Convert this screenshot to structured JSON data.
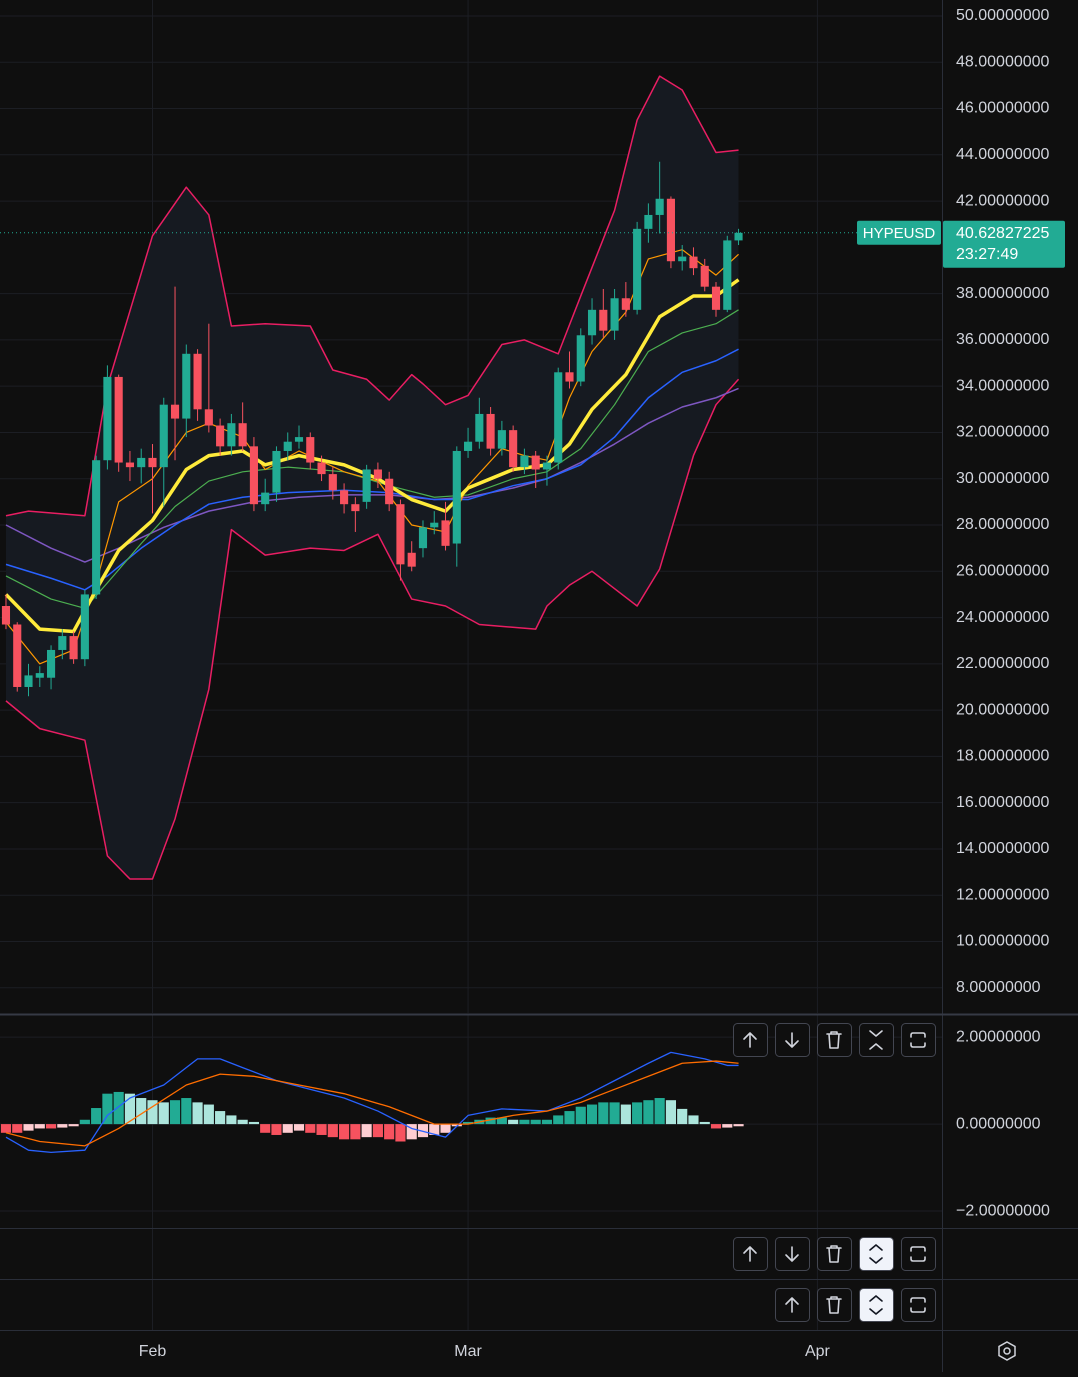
{
  "chart_data": [
    {
      "type": "candlestick",
      "symbol": "HYPEUSD",
      "last_price": 40.62827225,
      "countdown": "23:27:49",
      "up_color": "#22ab94",
      "down_color": "#f7525f",
      "open": [
        24.5,
        23.7,
        21.0,
        21.4,
        21.4,
        22.6,
        23.2,
        22.2,
        25.0,
        30.8,
        34.4,
        30.7,
        30.5,
        30.9,
        30.5,
        33.2,
        32.6,
        35.4,
        33.0,
        32.3,
        31.4,
        32.4,
        31.4,
        28.9,
        29.4,
        31.2,
        31.6,
        31.8,
        30.7,
        30.2,
        29.5,
        28.9,
        29.0,
        30.4,
        30.0,
        28.9,
        26.8,
        27.0,
        27.9,
        28.2,
        27.2,
        31.2,
        31.6,
        32.8,
        31.3,
        32.1,
        30.5,
        31.0,
        30.4,
        30.7,
        34.6,
        34.2,
        36.2,
        37.3,
        36.4,
        37.8,
        37.3,
        40.8,
        41.4,
        42.1,
        39.4,
        39.6,
        39.2,
        38.3,
        37.3,
        40.3
      ],
      "high": [
        25.0,
        23.8,
        22.0,
        21.9,
        22.8,
        23.5,
        23.4,
        25.2,
        31.0,
        34.9,
        34.5,
        31.2,
        31.3,
        31.5,
        33.5,
        38.3,
        35.8,
        35.6,
        36.7,
        32.6,
        32.8,
        33.3,
        31.8,
        30.0,
        31.4,
        32.0,
        32.3,
        32.0,
        31.0,
        30.5,
        29.8,
        29.2,
        30.6,
        30.7,
        30.3,
        29.1,
        27.3,
        28.2,
        28.6,
        29.0,
        31.4,
        32.2,
        33.5,
        33.1,
        32.5,
        32.3,
        31.3,
        31.2,
        31.0,
        34.8,
        35.5,
        36.5,
        37.8,
        38.2,
        38.2,
        38.5,
        41.1,
        41.9,
        43.7,
        42.2,
        40.1,
        40.0,
        39.5,
        38.5,
        40.5,
        40.8
      ],
      "low": [
        23.5,
        20.8,
        20.6,
        21.0,
        20.9,
        22.2,
        22.0,
        21.9,
        24.8,
        30.4,
        30.3,
        29.9,
        29.8,
        28.5,
        28.8,
        30.8,
        31.8,
        32.5,
        32.0,
        31.0,
        31.0,
        31.2,
        28.6,
        28.6,
        29.0,
        30.8,
        31.3,
        30.4,
        29.9,
        29.1,
        28.5,
        27.7,
        28.7,
        29.6,
        28.6,
        25.6,
        26.0,
        26.6,
        27.6,
        26.9,
        26.2,
        30.9,
        31.3,
        31.0,
        31.0,
        30.3,
        30.2,
        29.6,
        29.7,
        30.4,
        33.9,
        34.0,
        35.8,
        36.1,
        36.0,
        37.0,
        37.1,
        40.2,
        40.6,
        39.1,
        39.0,
        38.8,
        38.1,
        37.0,
        37.2,
        40.1
      ],
      "close": [
        23.7,
        21.0,
        21.5,
        21.6,
        22.6,
        23.2,
        22.2,
        25.0,
        30.8,
        34.4,
        30.7,
        30.5,
        30.9,
        30.5,
        33.2,
        32.6,
        35.4,
        33.0,
        32.3,
        31.4,
        32.4,
        31.4,
        28.9,
        29.4,
        31.2,
        31.6,
        31.8,
        30.7,
        30.2,
        29.5,
        28.9,
        28.6,
        30.4,
        30.0,
        28.9,
        26.3,
        26.2,
        27.9,
        28.1,
        27.1,
        31.2,
        31.6,
        32.8,
        31.3,
        32.1,
        30.5,
        31.0,
        30.4,
        30.7,
        34.6,
        34.2,
        36.2,
        37.3,
        36.4,
        37.8,
        37.3,
        40.8,
        41.4,
        42.1,
        39.4,
        39.6,
        39.1,
        38.3,
        37.3,
        40.3,
        40.62827225
      ],
      "series": [
        {
          "color": "#e91e63",
          "width": 1.5,
          "x": [
            0,
            2,
            7,
            9,
            13,
            16,
            18,
            20,
            23,
            27,
            29,
            32,
            34,
            36,
            37,
            39,
            41,
            44,
            46,
            49,
            51,
            54,
            56,
            58,
            60,
            63,
            65
          ],
          "values": [
            28.4,
            28.6,
            28.4,
            34.0,
            40.5,
            42.6,
            41.4,
            36.6,
            36.7,
            36.6,
            34.7,
            34.3,
            33.4,
            34.5,
            34.1,
            33.2,
            33.6,
            35.8,
            36.0,
            35.4,
            37.9,
            41.6,
            45.5,
            47.4,
            46.8,
            44.1,
            44.2
          ]
        },
        {
          "color": "#e91e63",
          "width": 1.5,
          "x": [
            0,
            3,
            7,
            9,
            11,
            13,
            15,
            18,
            20,
            23,
            27,
            30,
            33,
            36,
            39,
            42,
            47,
            48,
            50,
            52,
            56,
            58,
            61,
            63,
            65
          ],
          "values": [
            20.4,
            19.2,
            18.7,
            13.7,
            12.7,
            12.7,
            15.3,
            20.9,
            27.8,
            26.7,
            27.0,
            26.9,
            27.6,
            24.8,
            24.5,
            23.7,
            23.5,
            24.5,
            25.4,
            26.0,
            24.5,
            26.1,
            31.0,
            33.2,
            34.3
          ]
        },
        {
          "color": "#7e57c2",
          "width": 1.5,
          "x": [
            0,
            4,
            7,
            10,
            14,
            18,
            22,
            26,
            30,
            34,
            38,
            41,
            45,
            48,
            51,
            54,
            57,
            60,
            63,
            65
          ],
          "values": [
            28.0,
            27.0,
            26.4,
            27.0,
            27.9,
            28.6,
            29.0,
            29.2,
            29.3,
            29.3,
            29.1,
            29.2,
            29.6,
            30.0,
            30.7,
            31.5,
            32.4,
            33.1,
            33.5,
            33.9
          ]
        },
        {
          "color": "#2962ff",
          "width": 1.5,
          "x": [
            0,
            4,
            7,
            9,
            12,
            15,
            18,
            21,
            25,
            30,
            34,
            38,
            41,
            45,
            48,
            51,
            54,
            57,
            60,
            63,
            65
          ],
          "values": [
            26.3,
            25.7,
            25.2,
            25.8,
            27.0,
            28.0,
            28.9,
            29.2,
            29.4,
            29.5,
            29.4,
            29.1,
            29.1,
            29.7,
            30.0,
            30.6,
            31.8,
            33.5,
            34.6,
            35.1,
            35.6
          ]
        },
        {
          "color": "#4caf50",
          "width": 1.2,
          "x": [
            0,
            4,
            7,
            9,
            12,
            15,
            18,
            21,
            25,
            30,
            34,
            38,
            41,
            45,
            48,
            51,
            54,
            57,
            60,
            63,
            65
          ],
          "values": [
            25.8,
            24.8,
            24.4,
            25.5,
            27.2,
            28.8,
            29.9,
            30.3,
            30.5,
            30.3,
            29.7,
            29.2,
            29.3,
            30.0,
            30.3,
            31.3,
            33.2,
            35.5,
            36.3,
            36.7,
            37.3
          ]
        },
        {
          "color": "#ff9800",
          "width": 1.2,
          "x": [
            0,
            3,
            6,
            8,
            10,
            13,
            16,
            18,
            21,
            23,
            26,
            30,
            33,
            36,
            39,
            41,
            44,
            46,
            48,
            50,
            52,
            55,
            57,
            60,
            63,
            65
          ],
          "values": [
            23.8,
            22.0,
            22.6,
            25.5,
            29.0,
            30.0,
            32.0,
            32.4,
            31.8,
            30.4,
            31.2,
            30.3,
            29.9,
            28.0,
            27.7,
            29.7,
            31.3,
            31.0,
            30.8,
            33.5,
            35.5,
            37.2,
            39.5,
            39.9,
            38.8,
            39.7
          ]
        },
        {
          "color": "#ffeb3b",
          "width": 3.5,
          "x": [
            0,
            3,
            6,
            8,
            10,
            13,
            16,
            18,
            21,
            23,
            26,
            30,
            33,
            36,
            39,
            41,
            45,
            48,
            50,
            52,
            55,
            58,
            61,
            63,
            65
          ],
          "values": [
            25.0,
            23.5,
            23.4,
            25.2,
            26.9,
            28.2,
            30.4,
            31.0,
            31.2,
            30.6,
            31.0,
            30.6,
            30.0,
            29.1,
            28.6,
            29.6,
            30.4,
            30.6,
            31.5,
            33.0,
            34.5,
            37.0,
            37.9,
            37.9,
            38.6
          ]
        }
      ],
      "xlim": [
        -0.53,
        83.14
      ],
      "xticks": [
        {
          "value": 13,
          "label": "Feb"
        },
        {
          "value": 41,
          "label": "Mar"
        },
        {
          "value": 72,
          "label": "Apr"
        }
      ],
      "ylim": [
        6.91,
        50.69
      ],
      "yticks": [
        {
          "value": 50,
          "label": "50.00000000"
        },
        {
          "value": 48,
          "label": "48.00000000"
        },
        {
          "value": 46,
          "label": "46.00000000"
        },
        {
          "value": 44,
          "label": "44.00000000"
        },
        {
          "value": 42,
          "label": "42.00000000"
        },
        {
          "value": 38,
          "label": "38.00000000"
        },
        {
          "value": 36,
          "label": "36.00000000"
        },
        {
          "value": 34,
          "label": "34.00000000"
        },
        {
          "value": 32,
          "label": "32.00000000"
        },
        {
          "value": 30,
          "label": "30.00000000"
        },
        {
          "value": 28,
          "label": "28.00000000"
        },
        {
          "value": 26,
          "label": "26.00000000"
        },
        {
          "value": 24,
          "label": "24.00000000"
        },
        {
          "value": 22,
          "label": "22.00000000"
        },
        {
          "value": 20,
          "label": "20.00000000"
        },
        {
          "value": 18,
          "label": "18.00000000"
        },
        {
          "value": 16,
          "label": "16.00000000"
        },
        {
          "value": 14,
          "label": "14.00000000"
        },
        {
          "value": 12,
          "label": "12.00000000"
        },
        {
          "value": 10,
          "label": "10.00000000"
        },
        {
          "value": 8,
          "label": "8.00000000"
        }
      ],
      "grid": true
    },
    {
      "type": "macd",
      "histogram": [
        -0.2,
        -0.2,
        -0.15,
        -0.1,
        -0.1,
        -0.08,
        -0.05,
        0.1,
        0.37,
        0.7,
        0.74,
        0.7,
        0.6,
        0.55,
        0.5,
        0.55,
        0.6,
        0.5,
        0.45,
        0.3,
        0.2,
        0.1,
        0.05,
        -0.2,
        -0.25,
        -0.2,
        -0.15,
        -0.2,
        -0.25,
        -0.3,
        -0.35,
        -0.35,
        -0.3,
        -0.3,
        -0.35,
        -0.4,
        -0.35,
        -0.3,
        -0.25,
        -0.2,
        -0.05,
        0.05,
        0.1,
        0.15,
        0.15,
        0.1,
        0.1,
        0.1,
        0.1,
        0.2,
        0.3,
        0.4,
        0.45,
        0.5,
        0.5,
        0.45,
        0.5,
        0.55,
        0.6,
        0.55,
        0.35,
        0.2,
        0.05,
        -0.1,
        -0.08,
        -0.05
      ],
      "histogram_colors": [
        "#22ab94",
        "#ace5dc",
        "#f7525f",
        "#ffcdd2"
      ],
      "series": [
        {
          "color": "#2962ff",
          "width": 1.3,
          "x": [
            0,
            2,
            4,
            7,
            9,
            11,
            14,
            17,
            19,
            21,
            24,
            27,
            30,
            33,
            36,
            39,
            41,
            44,
            48,
            51,
            54,
            57,
            59,
            62,
            64,
            65
          ],
          "values": [
            -0.3,
            -0.6,
            -0.65,
            -0.6,
            0.2,
            0.6,
            0.9,
            1.5,
            1.5,
            1.3,
            1.0,
            0.8,
            0.6,
            0.3,
            -0.1,
            -0.3,
            0.2,
            0.35,
            0.3,
            0.6,
            1.0,
            1.4,
            1.65,
            1.5,
            1.35,
            1.35
          ]
        },
        {
          "color": "#ff6d00",
          "width": 1.3,
          "x": [
            0,
            3,
            7,
            10,
            13,
            16,
            19,
            22,
            26,
            30,
            34,
            38,
            41,
            45,
            48,
            51,
            54,
            57,
            60,
            63,
            65
          ],
          "values": [
            -0.2,
            -0.4,
            -0.5,
            -0.1,
            0.4,
            0.9,
            1.15,
            1.1,
            0.9,
            0.7,
            0.4,
            0.0,
            0.0,
            0.2,
            0.3,
            0.5,
            0.8,
            1.1,
            1.4,
            1.45,
            1.4
          ]
        }
      ],
      "ylim": [
        -2.39,
        2.51
      ],
      "yticks": [
        {
          "value": 2,
          "label": "2.00000000"
        },
        {
          "value": 0,
          "label": "0.00000000"
        },
        {
          "value": -2,
          "label": "−2.00000000"
        }
      ],
      "grid": true
    }
  ]
}
